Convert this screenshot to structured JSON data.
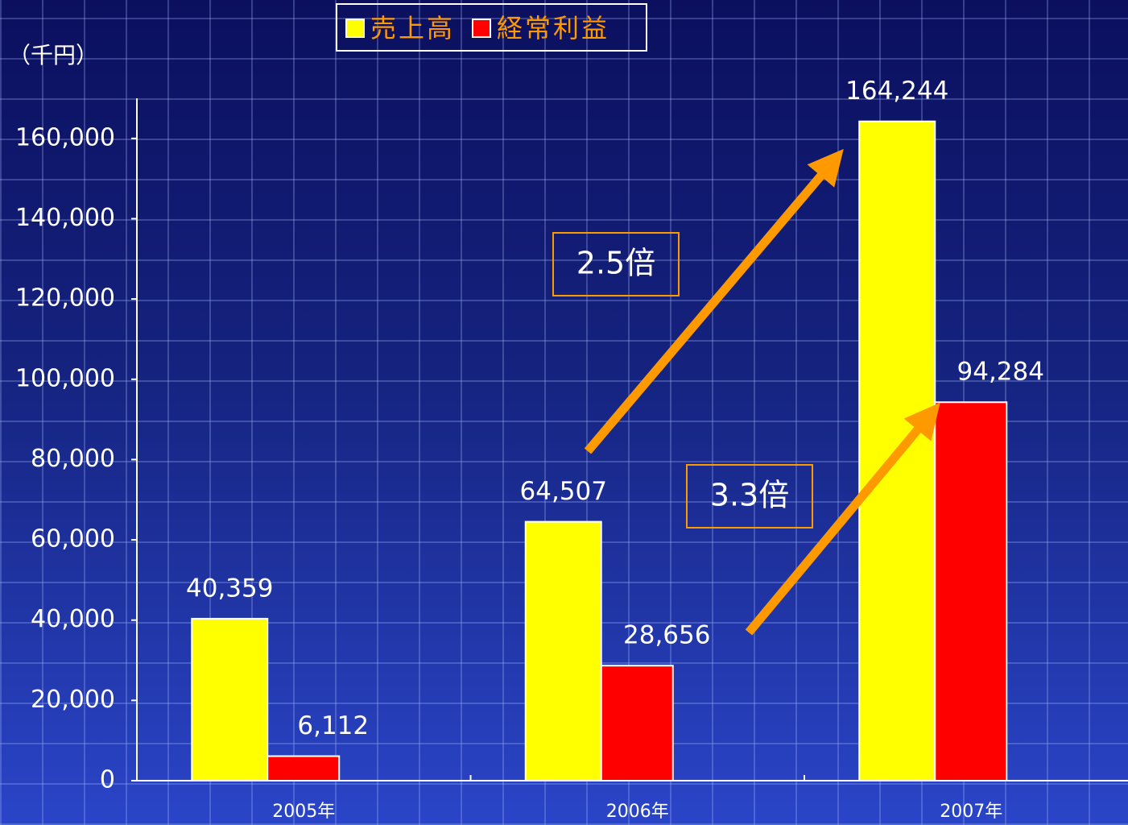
{
  "chart_data": {
    "type": "bar",
    "unit_label": "（千円）",
    "categories": [
      "2005年",
      "2006年",
      "2007年"
    ],
    "series": [
      {
        "name": "売上高",
        "color": "#ffff00",
        "values": [
          40359,
          64507,
          164244
        ],
        "value_labels": [
          "40,359",
          "64,507",
          "164,244"
        ]
      },
      {
        "name": "経常利益",
        "color": "#ff0000",
        "values": [
          6112,
          28656,
          94284
        ],
        "value_labels": [
          "6,112",
          "28,656",
          "94,284"
        ]
      }
    ],
    "ylim": [
      0,
      170000
    ],
    "yticks": [
      0,
      {
        "value": 20000,
        "label": "20,000"
      },
      {
        "value": 40000,
        "label": "40,000"
      },
      {
        "value": 60000,
        "label": "60,000"
      },
      {
        "value": 80000,
        "label": "80,000"
      },
      {
        "value": 100000,
        "label": "100,000"
      },
      {
        "value": 120000,
        "label": "120,000"
      },
      {
        "value": 140000,
        "label": "140,000"
      },
      {
        "value": 160000,
        "label": "160,000"
      }
    ],
    "annotations": [
      "2.5倍",
      "3.3倍"
    ],
    "legend_text_color": "#ff9900"
  }
}
